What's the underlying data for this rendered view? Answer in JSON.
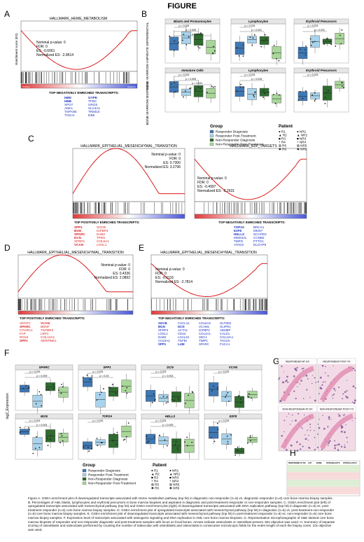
{
  "figure_title": "FIGURE",
  "panels": {
    "A": {
      "letter": "A",
      "title": "HALLMARK_HEME_METABOLISM",
      "stats": [
        "Nominal p-value: 0",
        "FDR: 0",
        "ES: -0.6061",
        "Normalized ES: -2.8614"
      ],
      "positive": "Positive",
      "negative": "Negative",
      "ylabel": "Enrichment score (ES)",
      "transcripts_title": "TOP NEGATIVELY ENRICHED TRANSCRIPTS:",
      "transcripts_left": [
        "HBD",
        "HBB",
        "XPO7",
        "ANK1",
        "TSPAN5",
        "TCEA1"
      ],
      "transcripts_right": [
        "GYPE",
        "TFRC",
        "UROS",
        "SLC4A1",
        "TRIM10",
        "CA1"
      ]
    },
    "B": {
      "letter": "B",
      "ylabel_top": "BONE MARROW ASPIRATE DIFFERENTIAL",
      "ylabel_bottom": "BONE MARROW BIOPSIES",
      "subplots": [
        {
          "title": "Blasts and Promonocytes",
          "p": [
            "p = 0.031",
            "p = 0.005",
            "p = 0.031"
          ]
        },
        {
          "title": "Lymphocytes",
          "p": [
            "p = 0.031",
            "p = 0.031"
          ]
        },
        {
          "title": "Erythroid Precursors",
          "p": [
            "p = 0.031",
            "p = 0.031"
          ]
        },
        {
          "title": "Immature Cells",
          "p": [
            "p = 0.031",
            "p = 0.005",
            "p = 0.031"
          ]
        },
        {
          "title": "Lymphocytes",
          "p": [
            "p = 0.031",
            "p = 0.018"
          ]
        },
        {
          "title": "Erythroid Precursors",
          "p": [
            "p = 0.031"
          ]
        }
      ],
      "legend_group_title": "Group",
      "legend_groups": [
        "Responder Diagnosis",
        "Responder Post-Treatment",
        "Non-Responder Diagnosis",
        "Non-Responder Post-Treatment"
      ],
      "legend_patient_title": "Patient",
      "legend_patients": [
        "R1",
        "R2",
        "R3",
        "R4",
        "R5",
        "R6",
        "NR1",
        "NR2",
        "NR3",
        "NR4",
        "NR5",
        "NR6"
      ]
    },
    "C": {
      "letter": "C",
      "left_title": "HALLMARK_EPITHELIAL_MESENCHYMAL_TRANSITION",
      "left_stats": [
        "Nominal p-value: 0",
        "FDR: 0",
        "ES: 0.7300",
        "Normalized ES: 3.2796"
      ],
      "left_transcripts_title": "TOP POSITIVELY ENRICHED TRANSCRIPTS:",
      "left_transcripts_l": [
        "SPP1",
        "BGN",
        "SPARC",
        "DCN",
        "SFRP4",
        "VCAN"
      ],
      "left_transcripts_r": [
        "SGCB",
        "IGFBP3",
        "DAB2",
        "TPM1",
        "COL5A1",
        "LOXL1"
      ],
      "right_title": "HALLMARK_E2F_TARGETS",
      "right_stats": [
        "Nominal p-value: 0",
        "FDR: 0",
        "ES: -0.4997",
        "Normalized ES: -2.2631"
      ],
      "right_transcripts_title": "TOP NEGATIVELY ENRICHED TRANSCRIPTS:",
      "right_transcripts_l": [
        "TOP2A",
        "E2F8",
        "HELLS",
        "MMS22L",
        "TMPO",
        "ATAD2"
      ],
      "right_transcripts_r": [
        "BRCA1",
        "MKI67",
        "NCAPD2",
        "CCNB2",
        "PTTG1",
        "DLGAP5"
      ]
    },
    "D": {
      "letter": "D",
      "title": "HALLMARK_EPITHELIAL_MESENCHYMAL_TRANSITION",
      "stats": [
        "Nominal p-value: 0",
        "FDR: 0",
        "ES: 0.4336",
        "Normalized ES: 2.0892"
      ],
      "transcripts_title": "TOP POSITIVELY ENRICHED TRANSCRIPTS:",
      "transcripts_l": [
        "VEGFC",
        "SPARC",
        "CTHRC1",
        "FAP",
        "RGS4",
        "SPP1"
      ],
      "transcripts_r": [
        "VCAN",
        "BDNF",
        "TGFBR3",
        "LRP1",
        "COL12A1",
        "SERPINE1"
      ]
    },
    "E": {
      "letter": "E",
      "title": "HALLMARK_EPITHELIAL_MESENCHYMAL_TRANSITION",
      "stats": [
        "Nominal p-value: 0",
        "FDR: 0",
        "ES: -0.6116",
        "Normalized ES: -2.7814"
      ],
      "transcripts_title": "TOP NEGATIVELY ENRICHED TRANSCRIPTS:",
      "cols": [
        [
          "SGCB",
          "BGN",
          "SFRP4",
          "LOXL1",
          "DAB2",
          "COL5A1",
          "SPP1"
        ],
        [
          "CXCL12",
          "DCN",
          "ACTA2",
          "CD44",
          "LGALS1",
          "TGFBI",
          "LUM"
        ],
        [
          "COL6A3",
          "VCAM1",
          "IGFBP3",
          "COL4A1",
          "SDC1",
          "TIMP1",
          "SPARC"
        ],
        [
          "GLT8D2",
          "GLIPR1",
          "ABI3BP",
          "CALD1",
          "COL12A1",
          "TAGLN",
          "FUCA1"
        ]
      ]
    },
    "F": {
      "letter": "F",
      "ylabel": "log2_Expression",
      "genes": [
        {
          "name": "SPARC",
          "p": [
            "p = 0.031",
            "p = 0.009"
          ]
        },
        {
          "name": "SPP1",
          "p": [
            "p = 0.031",
            "p = 0.03"
          ]
        },
        {
          "name": "DCN",
          "p": [
            "p = 0.031",
            "p = 0.004"
          ]
        },
        {
          "name": "VCAN",
          "p": [
            "p = 0.031"
          ]
        },
        {
          "name": "BGN",
          "p": [
            "p = 0.031",
            "p = 0.004"
          ]
        },
        {
          "name": "TOP2A",
          "p": [
            "p = 0.031"
          ]
        },
        {
          "name": "HELLS",
          "p": [
            "p = 0.031",
            "p = 0.009"
          ]
        },
        {
          "name": "E2F8",
          "p": [
            "p = 0.031"
          ]
        }
      ],
      "legend_group_title": "Group",
      "legend_groups": [
        "Responder Diagnosis",
        "Responder Post-Treatment",
        "Non-Responder Diagnosis",
        "Non-Responder Post-Treatment"
      ],
      "legend_patient_title": "Patient",
      "legend_patients": [
        "R1",
        "R2",
        "R3",
        "R4",
        "R5",
        "R6",
        "NR1",
        "NR2",
        "NR3",
        "NR4",
        "NR5",
        "NR6"
      ]
    },
    "G": {
      "letter": "G",
      "labels": [
        "RESPONDER AT DX",
        "RESPONDER POST-TX",
        "NON-RESPONDER AT DX",
        "NON-RESPONDER POST-TX"
      ]
    },
    "H": {
      "letter": "H",
      "headers": [
        "RESPONDER AT DX",
        "CAT",
        "BONE",
        "OSTEOBLASTS",
        "OSTEOCLASTS"
      ]
    }
  },
  "caption": "Figure A. GSEA enrichment plot of downregulated transcripts associated with Heme metabolism pathway (top hit) in diagnostic non-responder (n=6) vs. diagnostic responder (n=6) core bone marrow biopsy samples. B. Percentages of AML blasts, lymphocytes and erythroid precursors in bone marrow biopsies and aspirates in diagnostic and post-treatment responder or non-responder samples. C. GSEA enrichment plot (left) of upregulated transcripts associated with mesenchymal pathway (top hit) and GSEA enrichment plot (right) of downregulated transcripts associated with DNA replication pathway (top hit) in diagnostic (n=6) vs. post-treatment responder (n=6) core bone marrow biopsy samples. D. GSEA enrichment plot of upregulated transcripts associated with mesenchymal pathway (top hit) in diagnostic (n=6) vs. post-treatment non-responder (n=6) core bone marrow biopsy samples. E. GSEA enrichment plot of downregulated transcripts associated with mesenchymal pathway (top hit) in post-treatment responder (n=6) vs. non-responder (n=6) core bone marrow biopsy samples. F. Expression level of transcripts associated with osteogenic signaling and DNA replication in AML core bone marrow biopsies. G. Representative microphotographs of H&E stained core bone marrow biopsies of responder and non-responder diagnostic and post-treatment samples with focus on focal bones. Arrows indicate osteoclasts or osteoblast present. 50x objective was used. H. Summary of separate scoring of osteoblasts and osteoclasts performed by counting the number of trabeculae with osteoblasts and osteoclasts in consecutive microscopic fields for the entire length of each the biopsy cores. 10x objective was used.",
  "colors": {
    "red": "#d81e1e",
    "blue": "#1a2fbf",
    "dx_resp": "#3f78b4",
    "pt_resp": "#a9d3ec",
    "dx_nonresp": "#2f6b2f",
    "pt_nonresp": "#a9d79a"
  }
}
